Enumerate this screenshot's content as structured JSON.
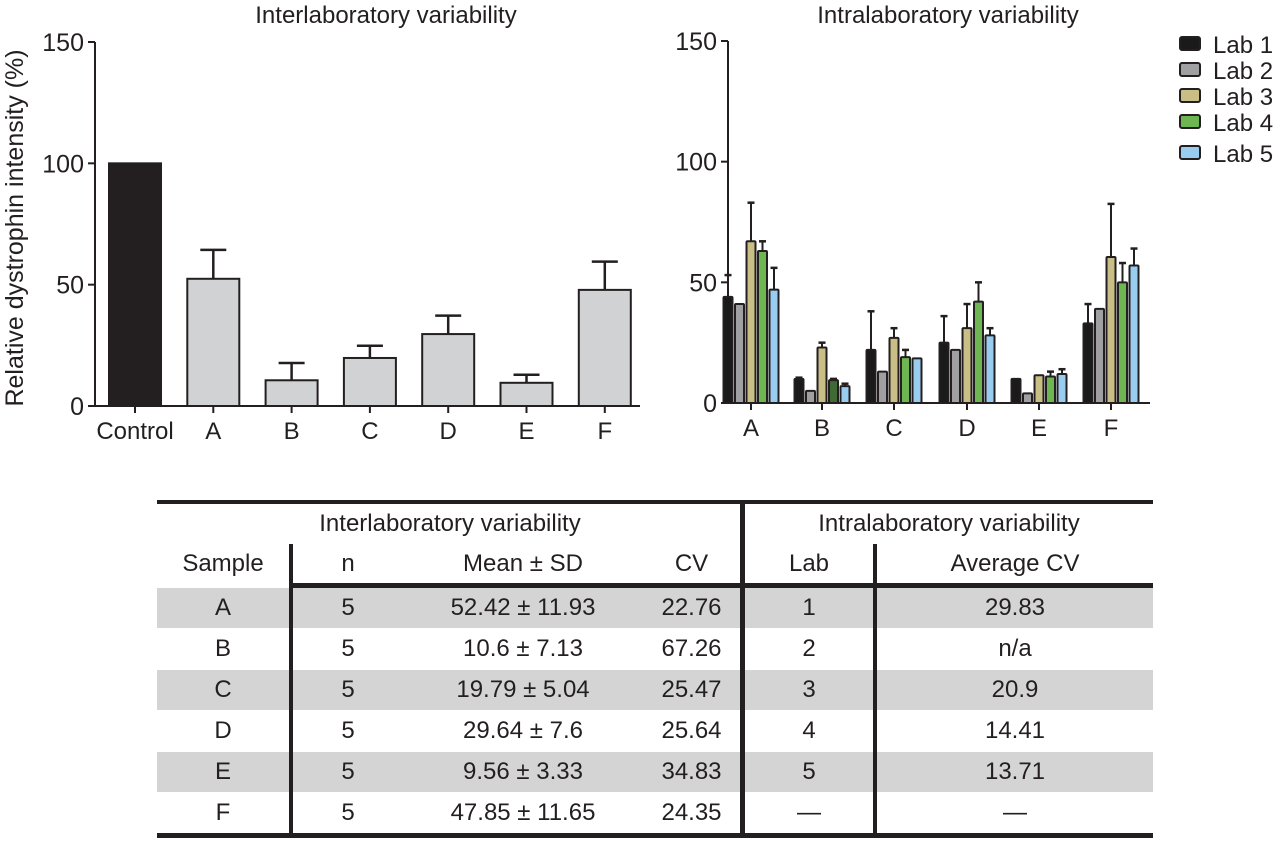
{
  "chart_data": [
    {
      "type": "bar",
      "title": "Interlaboratory variability",
      "xlabel": "",
      "ylabel": "Relative dystrophin intensity (%)",
      "ylim": [
        0,
        150
      ],
      "yticks": [
        0,
        50,
        100,
        150
      ],
      "categories": [
        "Control",
        "A",
        "B",
        "C",
        "D",
        "E",
        "F"
      ],
      "values": [
        100,
        52.42,
        10.6,
        19.79,
        29.64,
        9.56,
        47.85
      ],
      "errors": [
        0,
        11.93,
        7.13,
        5.04,
        7.6,
        3.33,
        11.65
      ],
      "colors": [
        "#231f20",
        "#d1d2d4",
        "#d1d2d4",
        "#d1d2d4",
        "#d1d2d4",
        "#d1d2d4",
        "#d1d2d4"
      ],
      "grid": false
    },
    {
      "type": "bar",
      "title": "Intralaboratory variability",
      "xlabel": "",
      "ylabel": "",
      "ylim": [
        0,
        150
      ],
      "yticks": [
        0,
        50,
        100,
        150
      ],
      "categories": [
        "A",
        "B",
        "C",
        "D",
        "E",
        "F"
      ],
      "legend": "top-right",
      "grid": false,
      "series": [
        {
          "name": "Lab 1",
          "color": "#1a1a1a",
          "values": [
            44,
            10,
            22,
            25,
            10,
            33
          ],
          "errors": [
            9,
            0.5,
            16,
            11,
            0,
            8
          ]
        },
        {
          "name": "Lab 2",
          "color": "#a0a0a3",
          "values": [
            41,
            5,
            13,
            22,
            4,
            39
          ],
          "errors": [
            0,
            0,
            0,
            0,
            0,
            0
          ]
        },
        {
          "name": "Lab 3",
          "color": "#c8be86",
          "values": [
            67,
            23,
            27,
            31,
            11.5,
            60.5
          ],
          "errors": [
            16,
            2,
            4,
            10,
            0,
            22
          ]
        },
        {
          "name": "Lab 4",
          "color": "#6db651",
          "values": [
            63,
            9.5,
            19,
            42,
            11,
            50
          ],
          "errors": [
            4,
            0.5,
            3,
            8,
            2,
            8
          ]
        },
        {
          "name": "Lab 5",
          "color": "#98cdf0",
          "values": [
            47,
            7,
            18.5,
            28,
            12,
            57
          ],
          "errors": [
            9,
            1,
            0,
            3,
            2,
            7
          ]
        }
      ],
      "special_colors": {
        "B-Lab 4": "#3f6a34"
      }
    }
  ],
  "table": {
    "inter_title": "Interlaboratory variability",
    "intra_title": "Intralaboratory variability",
    "headers": {
      "sample": "Sample",
      "n": "n",
      "mean_sd": "Mean ± SD",
      "cv": "CV",
      "lab": "Lab",
      "avg_cv": "Average CV"
    },
    "rows": [
      {
        "sample": "A",
        "n": "5",
        "mean_sd": "52.42 ± 11.93",
        "cv": "22.76",
        "lab": "1",
        "avg_cv": "29.83"
      },
      {
        "sample": "B",
        "n": "5",
        "mean_sd": "10.6 ± 7.13",
        "cv": "67.26",
        "lab": "2",
        "avg_cv": "n/a"
      },
      {
        "sample": "C",
        "n": "5",
        "mean_sd": "19.79 ± 5.04",
        "cv": "25.47",
        "lab": "3",
        "avg_cv": "20.9"
      },
      {
        "sample": "D",
        "n": "5",
        "mean_sd": "29.64 ± 7.6",
        "cv": "25.64",
        "lab": "4",
        "avg_cv": "14.41"
      },
      {
        "sample": "E",
        "n": "5",
        "mean_sd": "9.56 ± 3.33",
        "cv": "34.83",
        "lab": "5",
        "avg_cv": "13.71"
      },
      {
        "sample": "F",
        "n": "5",
        "mean_sd": "47.85 ± 11.65",
        "cv": "24.35",
        "lab": "—",
        "avg_cv": "—"
      }
    ]
  }
}
